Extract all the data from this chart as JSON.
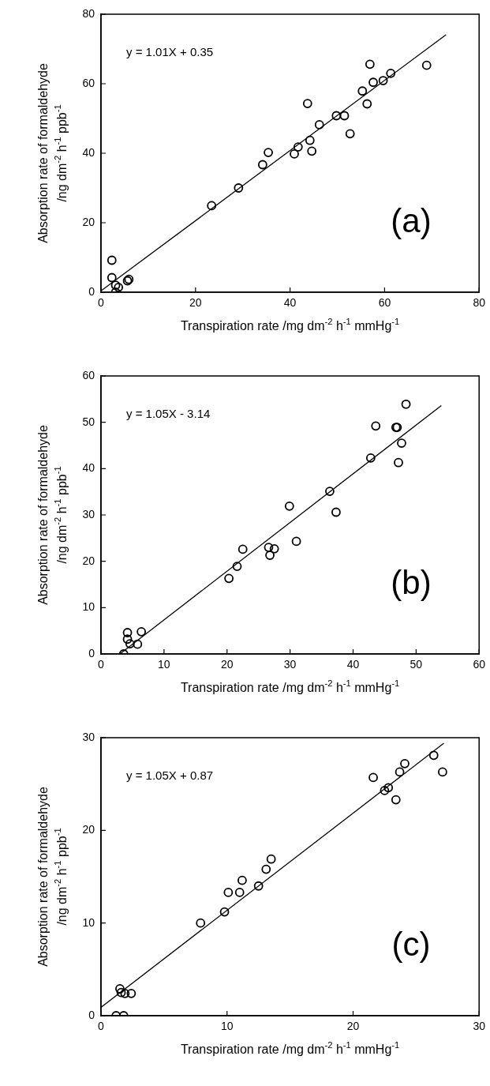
{
  "chart_data": [
    {
      "type": "scatter",
      "xlabel": "Transpiration rate /mg dm$^{-2}$ h$^{-1}$ mmHg$^{-1}$",
      "ylabel": "Absorption rate of formaldehyde\n/ng dm$^{-2}$ h$^{-1}$ ppb$^{-1}$",
      "xlim": [
        0,
        80
      ],
      "ylim": [
        0,
        80
      ],
      "xticks": [
        0,
        20,
        40,
        60,
        80
      ],
      "yticks": [
        0,
        20,
        40,
        60,
        80
      ],
      "grid": false,
      "annotations": [
        "y = 1.01X + 0.35",
        "(a)"
      ],
      "series": [
        {
          "type": "scatter",
          "marker": "circle",
          "color": "#000000",
          "x": [
            2.3,
            2.3,
            3.1,
            3.1,
            3.7,
            5.6,
            5.9,
            23.4,
            29.1,
            34.2,
            35.4,
            40.9,
            41.7,
            43.7,
            44.2,
            44.6,
            46.2,
            49.8,
            51.5,
            52.7,
            55.3,
            56.3,
            56.9,
            57.6,
            59.7,
            61.3,
            68.9
          ],
          "values": [
            9.2,
            4.2,
            2.0,
            0,
            1.4,
            3.3,
            3.7,
            24.9,
            30.0,
            36.7,
            40.2,
            39.8,
            41.8,
            54.3,
            43.7,
            40.6,
            48.2,
            50.8,
            50.8,
            45.6,
            57.9,
            54.2,
            65.6,
            60.4,
            60.9,
            63.0,
            65.3
          ]
        },
        {
          "type": "line",
          "marker": "none",
          "color": "#000000",
          "x": [
            0,
            73
          ],
          "values": [
            0.4,
            74.1
          ]
        }
      ]
    },
    {
      "type": "scatter",
      "xlabel": "Transpiration rate /mg dm$^{-2}$ h$^{-1}$ mmHg$^{-1}$",
      "ylabel": "Absorption rate of formaldehyde\n/ng dm$^{-2}$ h$^{-1}$ ppb$^{-1}$",
      "xlim": [
        0,
        60
      ],
      "ylim": [
        0,
        60
      ],
      "xticks": [
        0,
        10,
        20,
        30,
        40,
        50,
        60
      ],
      "yticks": [
        0,
        10,
        20,
        30,
        40,
        50,
        60
      ],
      "grid": false,
      "annotations": [
        "y = 1.05X - 3.14",
        "(b)"
      ],
      "series": [
        {
          "type": "scatter",
          "marker": "circle",
          "color": "#000000",
          "x": [
            3.6,
            4.2,
            4.2,
            4.6,
            5.8,
            6.4,
            20.3,
            21.6,
            22.5,
            26.6,
            26.8,
            27.5,
            29.9,
            31.0,
            36.3,
            37.3,
            42.8,
            43.6,
            46.8,
            47.0,
            47.2,
            47.7,
            48.4
          ],
          "values": [
            0,
            4.6,
            3.2,
            2.2,
            2.1,
            4.8,
            16.3,
            18.9,
            22.6,
            23.0,
            21.3,
            22.7,
            31.9,
            24.3,
            35.1,
            30.6,
            42.3,
            49.2,
            48.9,
            48.9,
            41.3,
            45.5,
            53.9
          ]
        },
        {
          "type": "line",
          "marker": "none",
          "color": "#000000",
          "x": [
            3,
            54
          ],
          "values": [
            0,
            53.6
          ]
        }
      ]
    },
    {
      "type": "scatter",
      "xlabel": "Transpiration rate /mg dm$^{-2}$ h$^{-1}$ mmHg$^{-1}$",
      "ylabel": "Absorption rate of formaldehyde\n/ng dm$^{-2}$ h$^{-1}$ ppb$^{-1}$",
      "xlim": [
        0,
        30
      ],
      "ylim": [
        0,
        30
      ],
      "xticks": [
        0,
        10,
        20,
        30
      ],
      "yticks": [
        0,
        10,
        20,
        30
      ],
      "grid": false,
      "annotations": [
        "y = 1.05X + 0.87",
        "(c)"
      ],
      "series": [
        {
          "type": "scatter",
          "marker": "circle",
          "color": "#000000",
          "x": [
            1.2,
            1.8,
            1.5,
            1.6,
            1.9,
            2.4,
            7.9,
            9.8,
            10.1,
            11.0,
            11.2,
            12.5,
            13.1,
            13.5,
            21.6,
            22.5,
            22.8,
            23.4,
            23.7,
            24.1,
            26.4,
            27.1
          ],
          "values": [
            0,
            0,
            2.9,
            2.5,
            2.4,
            2.4,
            10.0,
            11.2,
            13.3,
            13.3,
            14.6,
            14.0,
            15.8,
            16.9,
            25.7,
            24.3,
            24.6,
            23.3,
            26.3,
            27.2,
            28.1,
            26.3
          ]
        },
        {
          "type": "line",
          "marker": "none",
          "color": "#000000",
          "x": [
            0,
            27.2
          ],
          "values": [
            0.9,
            29.4
          ]
        }
      ]
    }
  ]
}
